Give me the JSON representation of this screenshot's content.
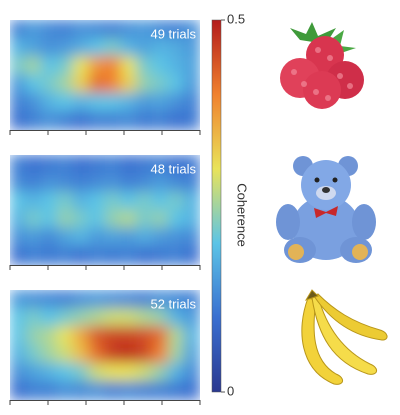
{
  "chart_data": {
    "type": "heatmap",
    "colormap": [
      "#2b3990",
      "#3a6fd0",
      "#5cc4e6",
      "#e9e35a",
      "#f0812e",
      "#b31b1b"
    ],
    "colorbar": {
      "label": "Coherence",
      "lim": [
        0,
        0.5
      ],
      "ticks": [
        0,
        0.5
      ]
    },
    "panels": [
      {
        "label": "49 trials",
        "values": [
          [
            0.12,
            0.15,
            0.13,
            0.12,
            0.14,
            0.13,
            0.12,
            0.14,
            0.15,
            0.13,
            0.12,
            0.14
          ],
          [
            0.18,
            0.16,
            0.14,
            0.15,
            0.17,
            0.2,
            0.22,
            0.18,
            0.16,
            0.18,
            0.17,
            0.15
          ],
          [
            0.22,
            0.25,
            0.2,
            0.22,
            0.3,
            0.38,
            0.4,
            0.3,
            0.22,
            0.2,
            0.18,
            0.16
          ],
          [
            0.15,
            0.2,
            0.22,
            0.25,
            0.32,
            0.42,
            0.4,
            0.32,
            0.24,
            0.22,
            0.2,
            0.15
          ],
          [
            0.12,
            0.14,
            0.18,
            0.2,
            0.18,
            0.2,
            0.2,
            0.18,
            0.15,
            0.16,
            0.14,
            0.12
          ],
          [
            0.1,
            0.12,
            0.14,
            0.12,
            0.1,
            0.12,
            0.12,
            0.13,
            0.11,
            0.12,
            0.1,
            0.11
          ]
        ]
      },
      {
        "label": "48 trials",
        "values": [
          [
            0.12,
            0.1,
            0.11,
            0.12,
            0.1,
            0.11,
            0.12,
            0.1,
            0.11,
            0.12,
            0.1,
            0.11
          ],
          [
            0.13,
            0.12,
            0.14,
            0.13,
            0.12,
            0.13,
            0.14,
            0.12,
            0.13,
            0.15,
            0.13,
            0.12
          ],
          [
            0.2,
            0.18,
            0.2,
            0.22,
            0.18,
            0.2,
            0.22,
            0.2,
            0.22,
            0.2,
            0.22,
            0.18
          ],
          [
            0.18,
            0.22,
            0.2,
            0.24,
            0.22,
            0.2,
            0.24,
            0.26,
            0.22,
            0.24,
            0.2,
            0.18
          ],
          [
            0.14,
            0.15,
            0.13,
            0.16,
            0.18,
            0.15,
            0.16,
            0.15,
            0.17,
            0.15,
            0.14,
            0.13
          ],
          [
            0.1,
            0.12,
            0.11,
            0.12,
            0.1,
            0.12,
            0.11,
            0.12,
            0.1,
            0.11,
            0.12,
            0.1
          ]
        ]
      },
      {
        "label": "52 trials",
        "values": [
          [
            0.15,
            0.14,
            0.13,
            0.12,
            0.14,
            0.15,
            0.14,
            0.13,
            0.12,
            0.14,
            0.13,
            0.12
          ],
          [
            0.2,
            0.22,
            0.2,
            0.22,
            0.24,
            0.26,
            0.28,
            0.28,
            0.26,
            0.24,
            0.18,
            0.15
          ],
          [
            0.2,
            0.24,
            0.26,
            0.3,
            0.36,
            0.44,
            0.46,
            0.46,
            0.45,
            0.42,
            0.26,
            0.18
          ],
          [
            0.18,
            0.22,
            0.25,
            0.28,
            0.34,
            0.42,
            0.47,
            0.48,
            0.46,
            0.4,
            0.25,
            0.16
          ],
          [
            0.14,
            0.16,
            0.18,
            0.2,
            0.22,
            0.28,
            0.3,
            0.3,
            0.28,
            0.24,
            0.18,
            0.13
          ],
          [
            0.1,
            0.12,
            0.12,
            0.14,
            0.13,
            0.14,
            0.12,
            0.13,
            0.12,
            0.12,
            0.11,
            0.1
          ]
        ]
      }
    ]
  }
}
